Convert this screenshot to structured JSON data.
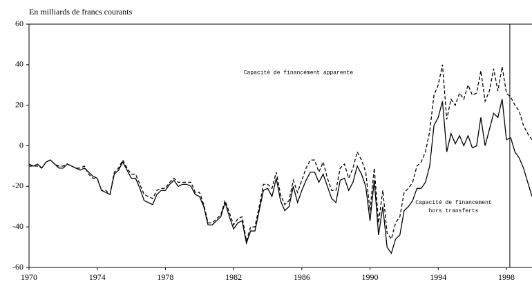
{
  "chart_data": {
    "type": "line",
    "title": "En milliards de francs courants",
    "x": [
      1970,
      1970.25,
      1970.5,
      1970.75,
      1971,
      1971.25,
      1971.5,
      1971.75,
      1972,
      1972.25,
      1972.5,
      1972.75,
      1973,
      1973.25,
      1973.5,
      1973.75,
      1974,
      1974.25,
      1974.5,
      1974.75,
      1975,
      1975.25,
      1975.5,
      1975.75,
      1976,
      1976.25,
      1976.5,
      1976.75,
      1977,
      1977.25,
      1977.5,
      1977.75,
      1978,
      1978.25,
      1978.5,
      1978.75,
      1979,
      1979.25,
      1979.5,
      1979.75,
      1980,
      1980.25,
      1980.5,
      1980.75,
      1981,
      1981.25,
      1981.5,
      1981.75,
      1982,
      1982.25,
      1982.5,
      1982.75,
      1983,
      1983.25,
      1983.5,
      1983.75,
      1984,
      1984.25,
      1984.5,
      1984.75,
      1985,
      1985.25,
      1985.5,
      1985.75,
      1986,
      1986.25,
      1986.5,
      1986.75,
      1987,
      1987.25,
      1987.5,
      1987.75,
      1988,
      1988.25,
      1988.5,
      1988.75,
      1989,
      1989.25,
      1989.5,
      1989.75,
      1990,
      1990.25,
      1990.5,
      1990.75,
      1991,
      1991.25,
      1991.5,
      1991.75,
      1992,
      1992.25,
      1992.5,
      1992.75,
      1993,
      1993.25,
      1993.5,
      1993.75,
      1994,
      1994.25,
      1994.5,
      1994.75,
      1995,
      1995.25,
      1995.5,
      1995.75,
      1996,
      1996.25,
      1996.5,
      1996.75,
      1997,
      1997.25,
      1997.5,
      1997.75,
      1998,
      1998.25,
      1998.5,
      1998.75,
      1999,
      1999.25,
      1999.5
    ],
    "series": [
      {
        "color": "#000000",
        "dashed": false,
        "values": [
          -9,
          -10,
          -9,
          -11,
          -8,
          -7,
          -9,
          -11,
          -11,
          -9,
          -10,
          -11,
          -12,
          -11,
          -13,
          -15,
          -16,
          -22,
          -23,
          -24,
          -14,
          -12,
          -8,
          -12,
          -16,
          -16,
          -21,
          -27,
          -28,
          -29,
          -24,
          -22,
          -22,
          -19,
          -17,
          -20,
          -19,
          -19,
          -20,
          -24,
          -25,
          -30,
          -39,
          -39,
          -37,
          -35,
          -28,
          -35,
          -41,
          -38,
          -37,
          -48,
          -42,
          -42,
          -32,
          -22,
          -21,
          -25,
          -16,
          -27,
          -32,
          -30,
          -20,
          -28,
          -22,
          -17,
          -13,
          -13,
          -18,
          -14,
          -20,
          -26,
          -28,
          -17,
          -16,
          -22,
          -18,
          -10,
          -14,
          -20,
          -37,
          -17,
          -44,
          -30,
          -50,
          -53,
          -46,
          -44,
          -32,
          -30,
          -27,
          -21,
          -21,
          -18,
          -10,
          10,
          14,
          22,
          -3,
          6,
          1,
          5,
          0,
          5,
          -1,
          0,
          14,
          0,
          8,
          16,
          14,
          23,
          3,
          4,
          -3,
          -6,
          -11,
          -18,
          -25
        ]
      },
      {
        "color": "#000000",
        "dashed": true,
        "values": [
          -10,
          -10,
          -10,
          -11,
          -8,
          -7,
          -9,
          -10,
          -10,
          -9,
          -10,
          -11,
          -11,
          -10,
          -14,
          -16,
          -16,
          -22,
          -22,
          -24,
          -13,
          -11,
          -7,
          -11,
          -14,
          -14,
          -19,
          -24,
          -25,
          -26,
          -22,
          -21,
          -21,
          -18,
          -16,
          -18,
          -18,
          -18,
          -18,
          -23,
          -23,
          -29,
          -38,
          -38,
          -36,
          -34,
          -27,
          -33,
          -39,
          -36,
          -35,
          -47,
          -40,
          -40,
          -30,
          -19,
          -19,
          -21,
          -13,
          -24,
          -29,
          -27,
          -17,
          -23,
          -17,
          -11,
          -7,
          -7,
          -13,
          -8,
          -16,
          -22,
          -22,
          -11,
          -9,
          -16,
          -11,
          -3,
          -7,
          -13,
          -32,
          -11,
          -38,
          -22,
          -43,
          -46,
          -38,
          -35,
          -23,
          -21,
          -18,
          -10,
          -8,
          -3,
          7,
          25,
          30,
          40,
          13,
          23,
          20,
          26,
          23,
          30,
          25,
          26,
          37,
          22,
          27,
          38,
          27,
          39,
          26,
          24,
          20,
          17,
          10,
          6,
          3
        ]
      }
    ],
    "vline": 1998.2,
    "annotations": [
      {
        "lines": [
          "Capacité de financement apparente"
        ],
        "x": 1985.8,
        "y": 36
      },
      {
        "lines": [
          "Capacité de financement",
          "hors transferts"
        ],
        "x": 1994.9,
        "y": -28
      }
    ],
    "xlim": [
      1970,
      1999.5
    ],
    "ylim": [
      -60,
      60
    ],
    "xticks": [
      1970,
      1974,
      1978,
      1982,
      1986,
      1990,
      1994,
      1998
    ],
    "yticks": [
      -60,
      -40,
      -20,
      0,
      20,
      40,
      60
    ]
  }
}
